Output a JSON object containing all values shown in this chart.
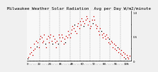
{
  "title": "Milwaukee Weather Solar Radiation  Avg per Day W/m2/minute",
  "title_fontsize": 4.2,
  "bg_color": "#f0f0f0",
  "plot_bg_color": "#f8f8f8",
  "dot_color_main": "#cc0000",
  "dot_color_alt": "#000000",
  "ylim": [
    0,
    1.05
  ],
  "xlim": [
    -1,
    113
  ],
  "grid_color": "#888888",
  "tick_fontsize": 2.8,
  "vline_positions": [
    13,
    24,
    35,
    46,
    57,
    68,
    79,
    90,
    101
  ],
  "x_values": [
    0,
    1,
    2,
    3,
    4,
    5,
    6,
    7,
    8,
    9,
    10,
    11,
    12,
    13,
    14,
    15,
    16,
    17,
    18,
    19,
    20,
    21,
    22,
    23,
    24,
    25,
    26,
    27,
    28,
    29,
    30,
    31,
    32,
    33,
    34,
    35,
    36,
    37,
    38,
    39,
    40,
    41,
    42,
    43,
    44,
    45,
    46,
    47,
    48,
    49,
    50,
    51,
    52,
    53,
    54,
    55,
    56,
    57,
    58,
    59,
    60,
    61,
    62,
    63,
    64,
    65,
    66,
    67,
    68,
    69,
    70,
    71,
    72,
    73,
    74,
    75,
    76,
    77,
    78,
    79,
    80,
    81,
    82,
    83,
    84,
    85,
    86,
    87,
    88,
    89,
    90,
    91,
    92,
    93,
    94,
    95,
    96,
    97,
    98,
    99,
    100,
    101,
    102,
    103,
    104,
    105,
    106,
    107,
    108,
    109,
    110,
    111
  ],
  "y_values": [
    0.05,
    0.08,
    0.15,
    0.28,
    0.18,
    0.12,
    0.22,
    0.35,
    0.25,
    0.42,
    0.3,
    0.38,
    0.28,
    0.45,
    0.52,
    0.48,
    0.38,
    0.42,
    0.55,
    0.35,
    0.28,
    0.45,
    0.52,
    0.38,
    0.48,
    0.55,
    0.42,
    0.35,
    0.52,
    0.45,
    0.38,
    0.28,
    0.42,
    0.35,
    0.55,
    0.48,
    0.42,
    0.55,
    0.48,
    0.35,
    0.45,
    0.38,
    0.52,
    0.48,
    0.62,
    0.55,
    0.48,
    0.58,
    0.65,
    0.72,
    0.68,
    0.75,
    0.62,
    0.58,
    0.72,
    0.78,
    0.68,
    0.82,
    0.75,
    0.88,
    0.82,
    0.72,
    0.78,
    0.85,
    0.92,
    0.88,
    0.75,
    0.82,
    0.68,
    0.72,
    0.85,
    0.78,
    0.92,
    0.85,
    0.75,
    0.68,
    0.72,
    0.62,
    0.55,
    0.68,
    0.62,
    0.55,
    0.48,
    0.58,
    0.52,
    0.45,
    0.55,
    0.48,
    0.38,
    0.45,
    0.35,
    0.42,
    0.38,
    0.28,
    0.35,
    0.25,
    0.32,
    0.22,
    0.28,
    0.18,
    0.25,
    0.15,
    0.22,
    0.12,
    0.18,
    0.08,
    0.15,
    0.05,
    0.12,
    0.08,
    0.05,
    0.1
  ],
  "is_black": [
    1,
    0,
    0,
    0,
    0,
    0,
    0,
    0,
    0,
    0,
    1,
    0,
    0,
    0,
    0,
    0,
    0,
    0,
    0,
    1,
    0,
    0,
    0,
    0,
    0,
    0,
    0,
    1,
    0,
    0,
    0,
    0,
    0,
    1,
    0,
    0,
    0,
    0,
    0,
    0,
    0,
    1,
    0,
    0,
    0,
    0,
    0,
    0,
    0,
    0,
    0,
    1,
    0,
    0,
    0,
    0,
    0,
    0,
    0,
    0,
    0,
    1,
    0,
    0,
    0,
    0,
    0,
    0,
    0,
    0,
    0,
    1,
    0,
    0,
    0,
    0,
    0,
    0,
    0,
    0,
    1,
    0,
    0,
    0,
    0,
    0,
    0,
    0,
    0,
    1,
    0,
    0,
    0,
    0,
    0,
    0,
    0,
    0,
    1,
    0,
    0,
    0,
    0,
    0,
    0,
    0,
    0,
    1,
    0,
    0,
    0,
    0
  ],
  "ytick_vals": [
    0.0,
    0.25,
    0.5,
    0.75,
    1.0
  ],
  "ytick_labels": [
    "0",
    "",
    "0.5",
    "",
    "1.0"
  ]
}
